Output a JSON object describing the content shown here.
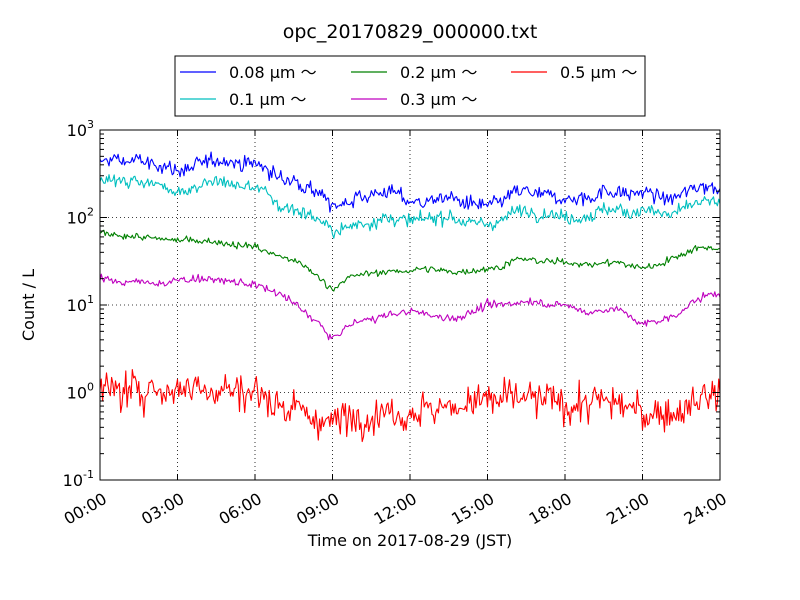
{
  "chart_data": {
    "type": "line",
    "title": "opc_20170829_000000.txt",
    "xlabel": "Time on 2017-08-29 (JST)",
    "ylabel": "Count / L",
    "xlim": [
      0,
      24
    ],
    "ylim": [
      0.1,
      1000
    ],
    "yscale": "log",
    "grid": true,
    "legend_position": "top",
    "x_ticks": [
      {
        "value": 0,
        "label": "00:00"
      },
      {
        "value": 3,
        "label": "03:00"
      },
      {
        "value": 6,
        "label": "06:00"
      },
      {
        "value": 9,
        "label": "09:00"
      },
      {
        "value": 12,
        "label": "12:00"
      },
      {
        "value": 15,
        "label": "15:00"
      },
      {
        "value": 18,
        "label": "18:00"
      },
      {
        "value": 21,
        "label": "21:00"
      },
      {
        "value": 24,
        "label": "24:00"
      }
    ],
    "y_ticks": [
      {
        "value": 0.1,
        "base": "10",
        "exp": "-1"
      },
      {
        "value": 1,
        "base": "10",
        "exp": "0"
      },
      {
        "value": 10,
        "base": "10",
        "exp": "1"
      },
      {
        "value": 100,
        "base": "10",
        "exp": "2"
      },
      {
        "value": 1000,
        "base": "10",
        "exp": "3"
      }
    ],
    "series": [
      {
        "name": "0.08 μm ～",
        "color": "#0000ff",
        "noise": 0.055,
        "x": [
          0,
          0.5,
          1,
          1.5,
          2,
          2.5,
          3,
          3.5,
          4,
          4.5,
          5,
          5.5,
          6,
          6.5,
          7,
          7.5,
          8,
          8.5,
          9,
          9.5,
          10,
          10.5,
          11,
          11.5,
          12,
          12.5,
          13,
          13.5,
          14,
          14.5,
          15,
          15.5,
          16,
          16.5,
          17,
          17.5,
          18,
          18.5,
          19,
          19.5,
          20,
          20.5,
          21,
          21.5,
          22,
          22.5,
          23,
          23.5,
          24
        ],
        "y": [
          420,
          470,
          430,
          460,
          400,
          390,
          340,
          360,
          430,
          450,
          460,
          400,
          420,
          350,
          280,
          260,
          220,
          190,
          130,
          150,
          170,
          180,
          200,
          190,
          150,
          150,
          160,
          170,
          150,
          140,
          135,
          150,
          190,
          200,
          180,
          175,
          160,
          160,
          170,
          200,
          200,
          180,
          200,
          180,
          160,
          180,
          220,
          230,
          220
        ]
      },
      {
        "name": "0.1 μm ～",
        "color": "#00bfbf",
        "noise": 0.05,
        "x": [
          0,
          0.5,
          1,
          1.5,
          2,
          2.5,
          3,
          3.5,
          4,
          4.5,
          5,
          5.5,
          6,
          6.5,
          7,
          7.5,
          8,
          8.5,
          9,
          9.5,
          10,
          10.5,
          11,
          11.5,
          12,
          12.5,
          13,
          13.5,
          14,
          14.5,
          15,
          15.5,
          16,
          16.5,
          17,
          17.5,
          18,
          18.5,
          19,
          19.5,
          20,
          20.5,
          21,
          21.5,
          22,
          22.5,
          23,
          23.5,
          24
        ],
        "y": [
          280,
          270,
          250,
          270,
          240,
          230,
          200,
          210,
          240,
          255,
          250,
          220,
          230,
          180,
          130,
          125,
          110,
          95,
          70,
          75,
          85,
          88,
          100,
          95,
          90,
          95,
          100,
          105,
          90,
          85,
          85,
          90,
          115,
          120,
          112,
          110,
          100,
          100,
          105,
          125,
          125,
          110,
          125,
          115,
          105,
          120,
          145,
          150,
          150
        ]
      },
      {
        "name": "0.2 μm ～",
        "color": "#008000",
        "noise": 0.025,
        "x": [
          0,
          0.5,
          1,
          1.5,
          2,
          2.5,
          3,
          3.5,
          4,
          4.5,
          5,
          5.5,
          6,
          6.5,
          7,
          7.5,
          8,
          8.5,
          9,
          9.5,
          10,
          10.5,
          11,
          11.5,
          12,
          12.5,
          13,
          13.5,
          14,
          14.5,
          15,
          15.5,
          16,
          16.5,
          17,
          17.5,
          18,
          18.5,
          19,
          19.5,
          20,
          20.5,
          21,
          21.5,
          22,
          22.5,
          23,
          23.5,
          24
        ],
        "y": [
          65,
          64,
          62,
          60,
          58,
          56,
          55,
          55,
          54,
          53,
          50,
          48,
          47,
          40,
          36,
          32,
          27,
          20,
          15,
          20,
          22,
          23,
          24,
          24,
          25,
          26,
          25,
          24,
          24,
          25,
          26,
          27,
          33,
          33,
          32,
          31,
          31,
          30,
          29,
          30,
          31,
          28,
          27,
          28,
          33,
          37,
          45,
          45,
          45
        ]
      },
      {
        "name": "0.3 μm ～",
        "color": "#bf00bf",
        "noise": 0.03,
        "x": [
          0,
          0.5,
          1,
          1.5,
          2,
          2.5,
          3,
          3.5,
          4,
          4.5,
          5,
          5.5,
          6,
          6.5,
          7,
          7.5,
          8,
          8.5,
          9,
          9.5,
          10,
          10.5,
          11,
          11.5,
          12,
          12.5,
          13,
          13.5,
          14,
          14.5,
          15,
          15.5,
          16,
          16.5,
          17,
          17.5,
          18,
          18.5,
          19,
          19.5,
          20,
          20.5,
          21,
          21.5,
          22,
          22.5,
          23,
          23.5,
          24
        ],
        "y": [
          20,
          19,
          18,
          18.5,
          18,
          17.5,
          19,
          20,
          20,
          19.5,
          18.5,
          18,
          17,
          15,
          13,
          10.5,
          8,
          6,
          4,
          5.5,
          6.5,
          7,
          7.5,
          8,
          8.5,
          8,
          7.5,
          7,
          7.5,
          8.5,
          10,
          10,
          10.5,
          11,
          11,
          10,
          10,
          9,
          8,
          9,
          9,
          7.5,
          6,
          6.5,
          7,
          8.5,
          11,
          13,
          14
        ]
      },
      {
        "name": "0.5 μm ～",
        "color": "#ff0000",
        "noise": 0.14,
        "x": [
          0,
          0.5,
          1,
          1.5,
          2,
          2.5,
          3,
          3.5,
          4,
          4.5,
          5,
          5.5,
          6,
          6.5,
          7,
          7.5,
          8,
          8.5,
          9,
          9.5,
          10,
          10.5,
          11,
          11.5,
          12,
          12.5,
          13,
          13.5,
          14,
          14.5,
          15,
          15.5,
          16,
          16.5,
          17,
          17.5,
          18,
          18.5,
          19,
          19.5,
          20,
          20.5,
          21,
          21.5,
          22,
          22.5,
          23,
          23.5,
          24
        ],
        "y": [
          1.1,
          1.0,
          1.05,
          1.1,
          1.1,
          1.05,
          1.1,
          1.2,
          1.15,
          1.1,
          1.1,
          1.05,
          1.0,
          0.85,
          0.7,
          0.65,
          0.55,
          0.5,
          0.45,
          0.5,
          0.55,
          0.55,
          0.6,
          0.6,
          0.6,
          0.65,
          0.65,
          0.7,
          0.75,
          0.8,
          0.8,
          0.8,
          0.85,
          0.85,
          0.8,
          0.8,
          0.75,
          0.7,
          0.75,
          0.8,
          0.75,
          0.65,
          0.6,
          0.6,
          0.6,
          0.65,
          0.75,
          1.0,
          0.9
        ]
      }
    ]
  }
}
